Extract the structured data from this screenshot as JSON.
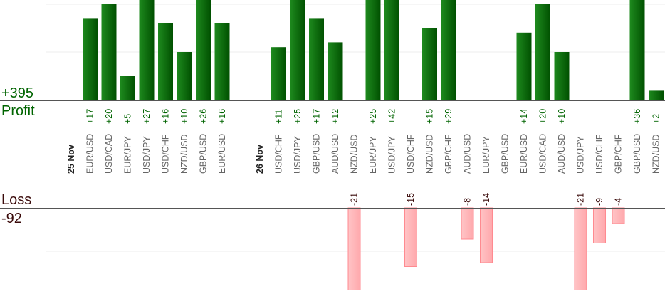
{
  "profit_total": "+395",
  "profit_label": "Profit",
  "loss_label": "Loss",
  "loss_total": "-92",
  "colors": {
    "profit_bar": "#006400",
    "profit_text": "#006400",
    "loss_bar": "#ffb6b9",
    "loss_text": "#3a0a0a",
    "axis": "#555555",
    "grid": "#eeeeee"
  },
  "chart_data": {
    "type": "bar",
    "grid": true,
    "slots": [
      {
        "label": "25 Nov",
        "kind": "date"
      },
      {
        "label": "EUR/USD",
        "value": 17
      },
      {
        "label": "USD/CAD",
        "value": 20
      },
      {
        "label": "EUR/JPY",
        "value": 5
      },
      {
        "label": "USD/JPY",
        "value": 27
      },
      {
        "label": "USD/CHF",
        "value": 16
      },
      {
        "label": "NZD/USD",
        "value": 10
      },
      {
        "label": "GBP/USD",
        "value": 26
      },
      {
        "label": "EUR/USD",
        "value": 16
      },
      {
        "label": "",
        "kind": "gap"
      },
      {
        "label": "26 Nov",
        "kind": "date"
      },
      {
        "label": "USD/CHF",
        "value": 11
      },
      {
        "label": "USD/JPY",
        "value": 25
      },
      {
        "label": "GBP/USD",
        "value": 17
      },
      {
        "label": "AUD/USD",
        "value": 12
      },
      {
        "label": "NZD/USD",
        "value": -21
      },
      {
        "label": "EUR/JPY",
        "value": 25
      },
      {
        "label": "USD/JPY",
        "value": 42
      },
      {
        "label": "USD/CHF",
        "value": -15
      },
      {
        "label": "NZD/USD",
        "value": 15
      },
      {
        "label": "GBP/CHF",
        "value": 29
      },
      {
        "label": "AUD/USD",
        "value": -8
      },
      {
        "label": "EUR/JPY",
        "value": -14
      },
      {
        "label": "GBP/USD",
        "value": null
      },
      {
        "label": "EUR/USD",
        "value": 14
      },
      {
        "label": "USD/CAD",
        "value": 20
      },
      {
        "label": "AUD/USD",
        "value": 10
      },
      {
        "label": "USD/JPY",
        "value": -21
      },
      {
        "label": "USD/CHF",
        "value": -9
      },
      {
        "label": "GBP/CHF",
        "value": -4
      },
      {
        "label": "GBP/USD",
        "value": 36
      },
      {
        "label": "NZD/USD",
        "value": 2
      }
    ]
  }
}
